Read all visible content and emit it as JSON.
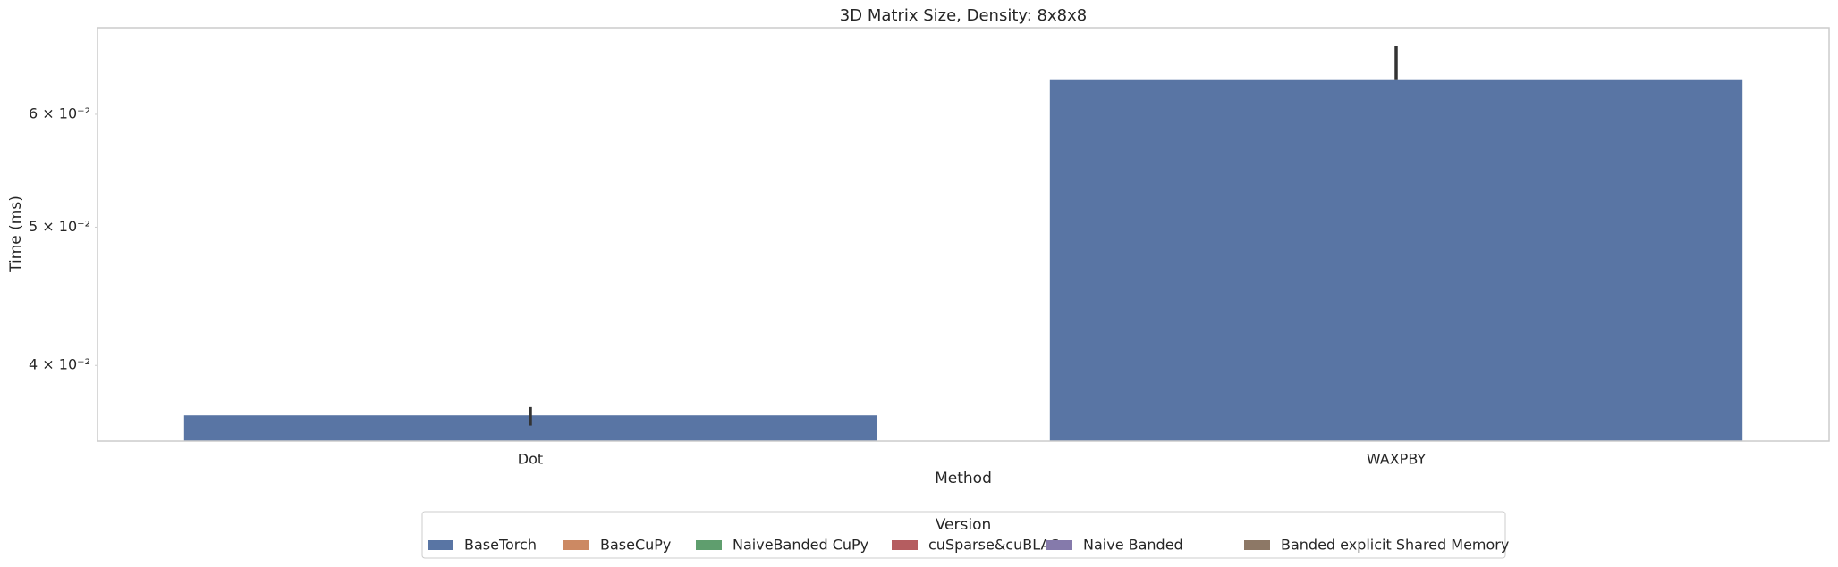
{
  "chart_data": {
    "type": "bar",
    "title": "3D Matrix Size, Density: 8x8x8",
    "x_label": "Method",
    "y_label": "Time (ms)",
    "categories": [
      "Dot",
      "WAXPBY"
    ],
    "log_scale": true,
    "grid": false,
    "ylim": [
      0.0354,
      0.069
    ],
    "yticks": [
      {
        "value": 0.04,
        "label": "4 × 10⁻²"
      },
      {
        "value": 0.05,
        "label": "5 × 10⁻²"
      },
      {
        "value": 0.06,
        "label": "6 × 10⁻²"
      }
    ],
    "legend_title": "Version",
    "legend_position": "bottom",
    "series": [
      {
        "name": "BaseTorch",
        "color": "#5975a4",
        "values": [
          0.0369,
          0.0634
        ],
        "ci": [
          [
            0.0363,
            0.0374
          ],
          [
            0.0634,
            0.067
          ]
        ]
      },
      {
        "name": "BaseCuPy",
        "color": "#cc8963",
        "values": [
          null,
          null
        ]
      },
      {
        "name": "NaiveBanded CuPy",
        "color": "#5f9e6e",
        "values": [
          null,
          null
        ]
      },
      {
        "name": "cuSparse&cuBLAS",
        "color": "#b55d60",
        "values": [
          null,
          null
        ]
      },
      {
        "name": "Naive Banded",
        "color": "#857aab",
        "values": [
          null,
          null
        ]
      },
      {
        "name": "Banded explicit Shared Memory",
        "color": "#8d7866",
        "values": [
          null,
          null
        ]
      }
    ]
  }
}
